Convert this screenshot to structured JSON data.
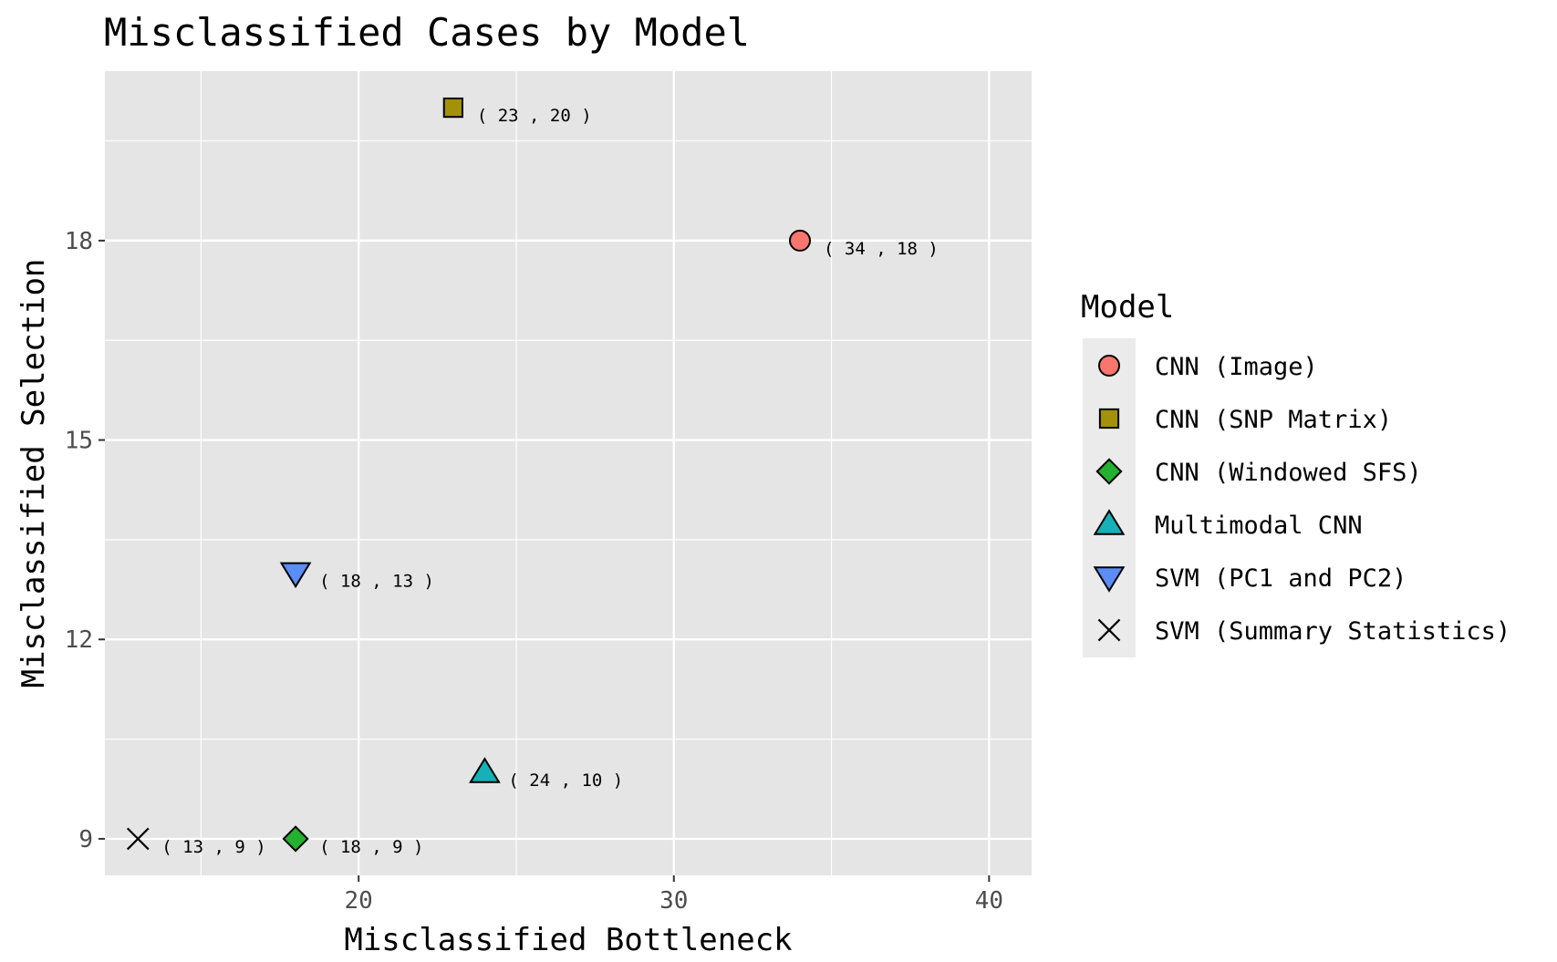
{
  "chart_data": {
    "type": "scatter",
    "title": "Misclassified Cases by Model",
    "xlabel": "Misclassified Bottleneck",
    "ylabel": "Misclassified Selection",
    "xlim": [
      11.95,
      41.35
    ],
    "ylim": [
      8.45,
      20.55
    ],
    "x_ticks": [
      20,
      30,
      40
    ],
    "y_ticks": [
      9,
      12,
      15,
      18
    ],
    "grid": true,
    "legend": {
      "title": "Model",
      "placement": "right"
    },
    "series": [
      {
        "name": "CNN (Image)",
        "shape": "circle",
        "color": "#F8766D",
        "x": 34,
        "y": 18,
        "label": "( 34 , 18 )"
      },
      {
        "name": "CNN (SNP Matrix)",
        "shape": "square",
        "color": "#A3910A",
        "x": 23,
        "y": 20,
        "label": "( 23 , 20 )"
      },
      {
        "name": "CNN (Windowed SFS)",
        "shape": "diamond",
        "color": "#23B12F",
        "x": 18,
        "y": 9,
        "label": "( 18 , 9 )"
      },
      {
        "name": "Multimodal CNN",
        "shape": "triangle-up",
        "color": "#16B1B6",
        "x": 24,
        "y": 10,
        "label": "( 24 , 10 )"
      },
      {
        "name": "SVM (PC1 and PC2)",
        "shape": "triangle-down",
        "color": "#5C8CF5",
        "x": 18,
        "y": 13,
        "label": "( 18 , 13 )"
      },
      {
        "name": "SVM (Summary Statistics)",
        "shape": "cross",
        "color": "#000000",
        "x": 13,
        "y": 9,
        "label": "( 13 , 9 )"
      }
    ],
    "colors": {
      "panel_background": "#e5e5e5",
      "grid": "#ffffff",
      "legend_key_background": "#ebebeb"
    }
  }
}
